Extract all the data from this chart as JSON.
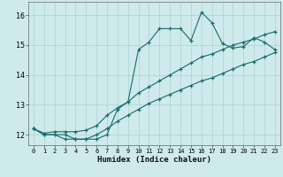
{
  "xlabel": "Humidex (Indice chaleur)",
  "bg_color": "#ceeaea",
  "grid_color": "#aad4d4",
  "line_color": "#1a6b6b",
  "xlim": [
    -0.5,
    23.5
  ],
  "ylim": [
    11.65,
    16.45
  ],
  "yticks": [
    12,
    13,
    14,
    15,
    16
  ],
  "xticks": [
    0,
    1,
    2,
    3,
    4,
    5,
    6,
    7,
    8,
    9,
    10,
    11,
    12,
    13,
    14,
    15,
    16,
    17,
    18,
    19,
    20,
    21,
    22,
    23
  ],
  "line_top_x": [
    0,
    1,
    3,
    4,
    5,
    6,
    7,
    8,
    9,
    10,
    11,
    12,
    13,
    14,
    15,
    16,
    17,
    18,
    19,
    20,
    21,
    22,
    23
  ],
  "line_top_y": [
    12.2,
    12.0,
    12.0,
    11.85,
    11.85,
    11.85,
    12.0,
    12.85,
    13.1,
    14.85,
    15.1,
    15.55,
    15.55,
    15.55,
    15.15,
    16.1,
    15.75,
    15.05,
    14.9,
    14.95,
    15.25,
    15.1,
    14.85
  ],
  "line_mid_x": [
    0,
    1,
    2,
    3,
    4,
    5,
    6,
    7,
    8,
    9,
    10,
    11,
    12,
    13,
    14,
    15,
    16,
    17,
    18,
    19,
    20,
    21,
    22,
    23
  ],
  "line_mid_y": [
    12.2,
    12.05,
    12.1,
    12.1,
    12.1,
    12.15,
    12.3,
    12.65,
    12.9,
    13.1,
    13.4,
    13.6,
    13.8,
    14.0,
    14.2,
    14.4,
    14.6,
    14.7,
    14.85,
    15.0,
    15.1,
    15.2,
    15.35,
    15.45
  ],
  "line_bot_x": [
    0,
    1,
    2,
    3,
    4,
    5,
    6,
    7,
    8,
    9,
    10,
    11,
    12,
    13,
    14,
    15,
    16,
    17,
    18,
    19,
    20,
    21,
    22,
    23
  ],
  "line_bot_y": [
    12.2,
    12.0,
    12.0,
    11.85,
    11.85,
    11.85,
    12.0,
    12.2,
    12.45,
    12.65,
    12.85,
    13.05,
    13.2,
    13.35,
    13.5,
    13.65,
    13.8,
    13.9,
    14.05,
    14.2,
    14.35,
    14.45,
    14.6,
    14.75
  ]
}
